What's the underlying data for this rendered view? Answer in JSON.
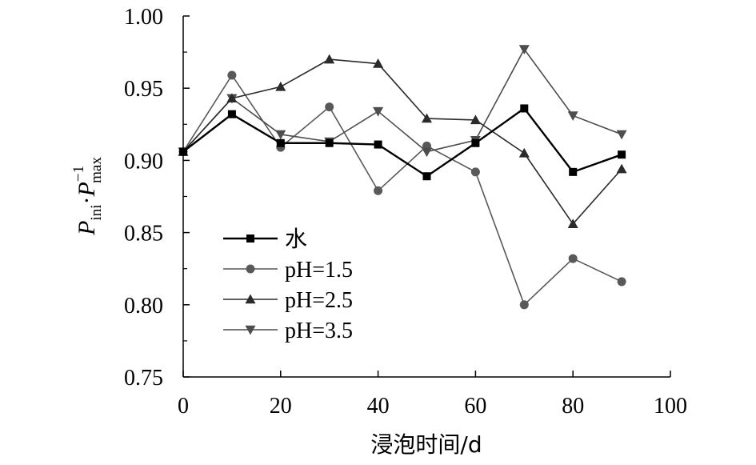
{
  "chart_data": {
    "type": "line",
    "title": "",
    "xlabel": "浸泡时间/d",
    "ylabel": {
      "p1": "P",
      "sub1": "ini",
      "dot": "·",
      "p2": "P",
      "sup2": "−1",
      "sub2": "max"
    },
    "xlim": [
      0,
      100
    ],
    "ylim": [
      0.75,
      1.0
    ],
    "x_ticks": [
      "0",
      "20",
      "40",
      "60",
      "80",
      "100"
    ],
    "y_ticks": [
      "0.75",
      "0.80",
      "0.85",
      "0.90",
      "0.95",
      "1.00"
    ],
    "grid": false,
    "legend_position": "lower-left inside",
    "x": [
      0,
      10,
      20,
      30,
      40,
      50,
      60,
      70,
      80,
      90
    ],
    "series": [
      {
        "name": "水",
        "marker": "square",
        "color": "#000000",
        "values": [
          0.906,
          0.932,
          0.912,
          0.912,
          0.911,
          0.889,
          0.912,
          0.936,
          0.892,
          0.904
        ]
      },
      {
        "name": "pH=1.5",
        "marker": "circle",
        "color": "#595959",
        "values": [
          0.906,
          0.959,
          0.909,
          0.937,
          0.879,
          0.91,
          0.892,
          0.8,
          0.832,
          0.816
        ]
      },
      {
        "name": "pH=2.5",
        "marker": "triangle-up",
        "color": "#2b2b2b",
        "values": [
          0.906,
          0.943,
          0.951,
          0.97,
          0.967,
          0.929,
          0.928,
          0.905,
          0.856,
          0.894
        ]
      },
      {
        "name": "pH=3.5",
        "marker": "triangle-down",
        "color": "#4d4d4d",
        "values": [
          0.906,
          0.943,
          0.918,
          0.913,
          0.934,
          0.906,
          0.914,
          0.977,
          0.931,
          0.918
        ]
      }
    ]
  }
}
